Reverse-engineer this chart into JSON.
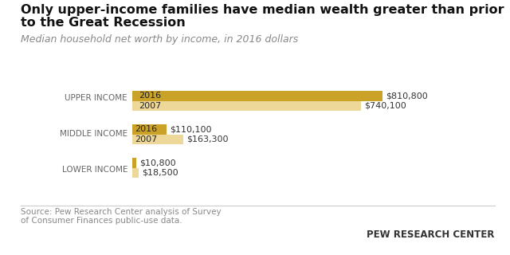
{
  "title_line1": "Only upper-income families have median wealth greater than prior",
  "title_line2": "to the Great Recession",
  "subtitle": "Median household net worth by income, in 2016 dollars",
  "categories": [
    "UPPER INCOME",
    "MIDDLE INCOME",
    "LOWER INCOME"
  ],
  "values_2016": [
    810800,
    110100,
    10800
  ],
  "values_2007": [
    740100,
    163300,
    18500
  ],
  "labels_2016": [
    "$810,800",
    "$110,100",
    "$10,800"
  ],
  "labels_2007": [
    "$740,100",
    "$163,300",
    "$18,500"
  ],
  "color_2016": "#C9A227",
  "color_2007": "#EDD89A",
  "bar_label_2016": "2016",
  "bar_label_2007": "2007",
  "source_text": "Source: Pew Research Center analysis of Survey\nof Consumer Finances public-use data.",
  "brand_text": "PEW RESEARCH CENTER",
  "background_color": "#FFFFFF",
  "xlim_max": 960000,
  "bar_height": 0.3,
  "title_fontsize": 11.5,
  "subtitle_fontsize": 9,
  "label_fontsize": 8,
  "category_fontsize": 7.5,
  "source_fontsize": 7.5,
  "brand_fontsize": 8.5,
  "year_label_fontsize": 8
}
